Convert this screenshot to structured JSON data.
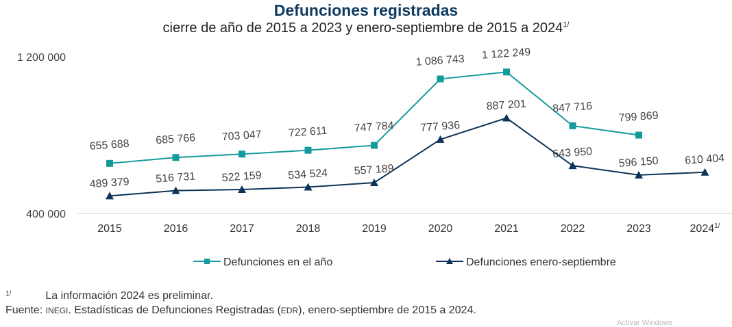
{
  "chart_data": {
    "type": "line",
    "title": "Defunciones registradas",
    "subtitle": "cierre de año de 2015 a 2023 y enero-septiembre de 2015 a 2024",
    "subtitle_sup": "1/",
    "categories": [
      "2015",
      "2016",
      "2017",
      "2018",
      "2019",
      "2020",
      "2021",
      "2022",
      "2023",
      "2024"
    ],
    "last_category_sup": "1/",
    "ylim": [
      400000,
      1200000
    ],
    "yticks": [
      "400 000",
      "1 200 000"
    ],
    "ytick_values": [
      400000,
      1200000
    ],
    "grid": false,
    "legend_placement": "bottom",
    "series": [
      {
        "name": "Defunciones en el año",
        "color": "#139a9a",
        "marker": "square",
        "values": [
          655688,
          685766,
          703047,
          722611,
          747784,
          1086743,
          1122249,
          847716,
          799869,
          null
        ],
        "labels": [
          "655 688",
          "685 766",
          "703 047",
          "722 611",
          "747 784",
          "1 086 743",
          "1 122 249",
          "847 716",
          "799 869",
          ""
        ]
      },
      {
        "name": "Defunciones enero-septiembre",
        "color": "#0d3357",
        "marker": "triangle",
        "values": [
          489379,
          516731,
          522159,
          534524,
          557189,
          777936,
          887201,
          643950,
          596150,
          610404
        ],
        "labels": [
          "489 379",
          "516 731",
          "522 159",
          "534 524",
          "557 189",
          "777 936",
          "887 201",
          "643 950",
          "596 150",
          "610 404"
        ]
      }
    ]
  },
  "notes": {
    "sup": "1/",
    "note1": "La información 2024 es preliminar.",
    "source_label": "Fuente:",
    "source_org": "INEGI",
    "source_text_a": ". Estadísticas de Defunciones Registradas (",
    "source_abbr": "EDR",
    "source_text_b": "), enero-septiembre de 2015 a 2024."
  },
  "watermark": "Activar Windows"
}
